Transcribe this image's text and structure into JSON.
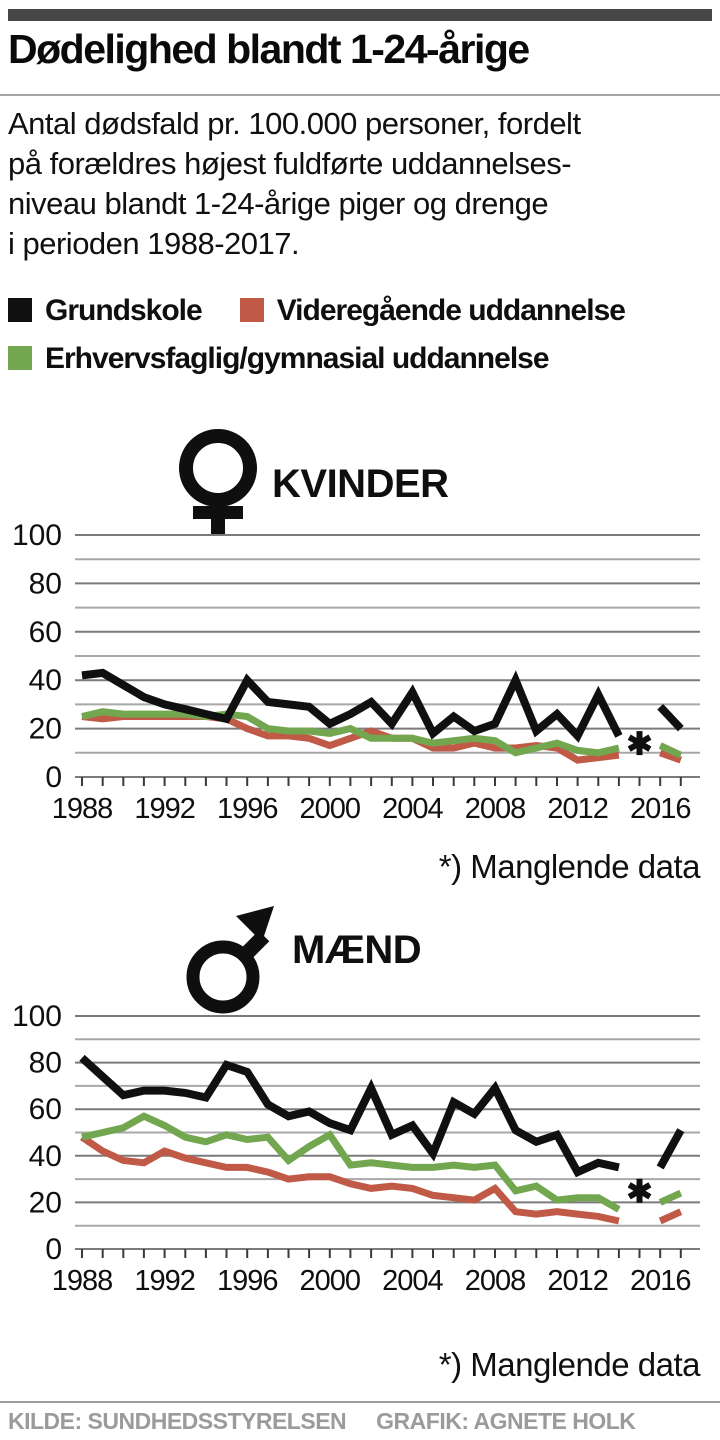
{
  "header": {
    "title": "Dødelighed blandt 1-24-årige",
    "subtitle_lines": [
      "Antal dødsfald pr. 100.000 personer, fordelt",
      "på forældres højest fuldførte uddannelses-",
      "niveau blandt 1-24-årige piger og drenge",
      "i perioden 1988-2017."
    ]
  },
  "colors": {
    "grundskole": "#101010",
    "videregaende": "#c05a47",
    "erhvervsfaglig": "#72a74f",
    "topbar": "#474747",
    "gridline_major": "#7a7a7a",
    "gridline_minor": "#a8a8a8",
    "footer_text": "#9b9b9b"
  },
  "legend": {
    "items": [
      {
        "label": "Grundskole",
        "color": "#101010"
      },
      {
        "label": "Videregående uddannelse",
        "color": "#c05a47"
      },
      {
        "label": "Erhvervsfaglig/gymnasial uddannelse",
        "color": "#72a74f"
      }
    ]
  },
  "footnote": "*) Manglende data",
  "footer": {
    "source": "KILDE: SUNDHEDSSTYRELSEN",
    "credit": "GRAFIK: AGNETE HOLK"
  },
  "chart_data": [
    {
      "type": "line",
      "title": "KVINDER",
      "gender_icon": "female",
      "x": [
        1988,
        1989,
        1990,
        1991,
        1992,
        1993,
        1994,
        1995,
        1996,
        1997,
        1998,
        1999,
        2000,
        2001,
        2002,
        2003,
        2004,
        2005,
        2006,
        2007,
        2008,
        2009,
        2010,
        2011,
        2012,
        2013,
        2014,
        2015,
        2016,
        2017
      ],
      "x_tick_labels": [
        1988,
        1992,
        1996,
        2000,
        2004,
        2008,
        2012,
        2016
      ],
      "ylim": [
        0,
        100
      ],
      "y_ticks": [
        0,
        20,
        40,
        60,
        80,
        100
      ],
      "grid_step": 10,
      "series": [
        {
          "name": "Grundskole",
          "color": "#101010",
          "values": [
            42,
            43,
            38,
            33,
            30,
            28,
            26,
            24,
            40,
            31,
            30,
            29,
            22,
            26,
            31,
            22,
            35,
            18,
            25,
            19,
            22,
            40,
            19,
            26,
            17,
            34,
            17,
            null,
            29,
            20
          ]
        },
        {
          "name": "Videregående uddannelse",
          "color": "#c05a47",
          "values": [
            25,
            24,
            25,
            25,
            25,
            25,
            25,
            24,
            20,
            17,
            17,
            16,
            13,
            16,
            19,
            16,
            16,
            12,
            12,
            14,
            12,
            12,
            13,
            12,
            7,
            8,
            9,
            null,
            10,
            7
          ]
        },
        {
          "name": "Erhvervsfaglig/gymnasial uddannelse",
          "color": "#72a74f",
          "values": [
            25,
            27,
            26,
            26,
            26,
            26,
            25,
            26,
            25,
            20,
            19,
            19,
            18,
            20,
            16,
            16,
            16,
            14,
            15,
            16,
            15,
            10,
            12,
            14,
            11,
            10,
            12,
            null,
            13,
            9
          ]
        }
      ],
      "missing_data_year": 2015,
      "asterisk_value": 14,
      "note": "*) Manglende data"
    },
    {
      "type": "line",
      "title": "MÆND",
      "gender_icon": "male",
      "x": [
        1988,
        1989,
        1990,
        1991,
        1992,
        1993,
        1994,
        1995,
        1996,
        1997,
        1998,
        1999,
        2000,
        2001,
        2002,
        2003,
        2004,
        2005,
        2006,
        2007,
        2008,
        2009,
        2010,
        2011,
        2012,
        2013,
        2014,
        2015,
        2016,
        2017
      ],
      "x_tick_labels": [
        1988,
        1992,
        1996,
        2000,
        2004,
        2008,
        2012,
        2016
      ],
      "ylim": [
        0,
        100
      ],
      "y_ticks": [
        0,
        20,
        40,
        60,
        80,
        100
      ],
      "grid_step": 10,
      "series": [
        {
          "name": "Grundskole",
          "color": "#101010",
          "values": [
            82,
            74,
            66,
            68,
            68,
            67,
            65,
            79,
            76,
            62,
            57,
            59,
            54,
            51,
            69,
            49,
            53,
            41,
            63,
            58,
            69,
            51,
            46,
            49,
            33,
            37,
            35,
            null,
            35,
            51
          ]
        },
        {
          "name": "Videregående uddannelse",
          "color": "#c05a47",
          "values": [
            48,
            42,
            38,
            37,
            42,
            39,
            37,
            35,
            35,
            33,
            30,
            31,
            31,
            28,
            26,
            27,
            26,
            23,
            22,
            21,
            26,
            16,
            15,
            16,
            15,
            14,
            12,
            null,
            12,
            16
          ]
        },
        {
          "name": "Erhvervsfaglig/gymnasial uddannelse",
          "color": "#72a74f",
          "values": [
            48,
            50,
            52,
            57,
            53,
            48,
            46,
            49,
            47,
            48,
            38,
            44,
            49,
            36,
            37,
            36,
            35,
            35,
            36,
            35,
            36,
            25,
            27,
            21,
            22,
            22,
            17,
            null,
            20,
            24
          ]
        }
      ],
      "missing_data_year": 2015,
      "asterisk_value": 25,
      "note": "*) Manglende data"
    }
  ]
}
